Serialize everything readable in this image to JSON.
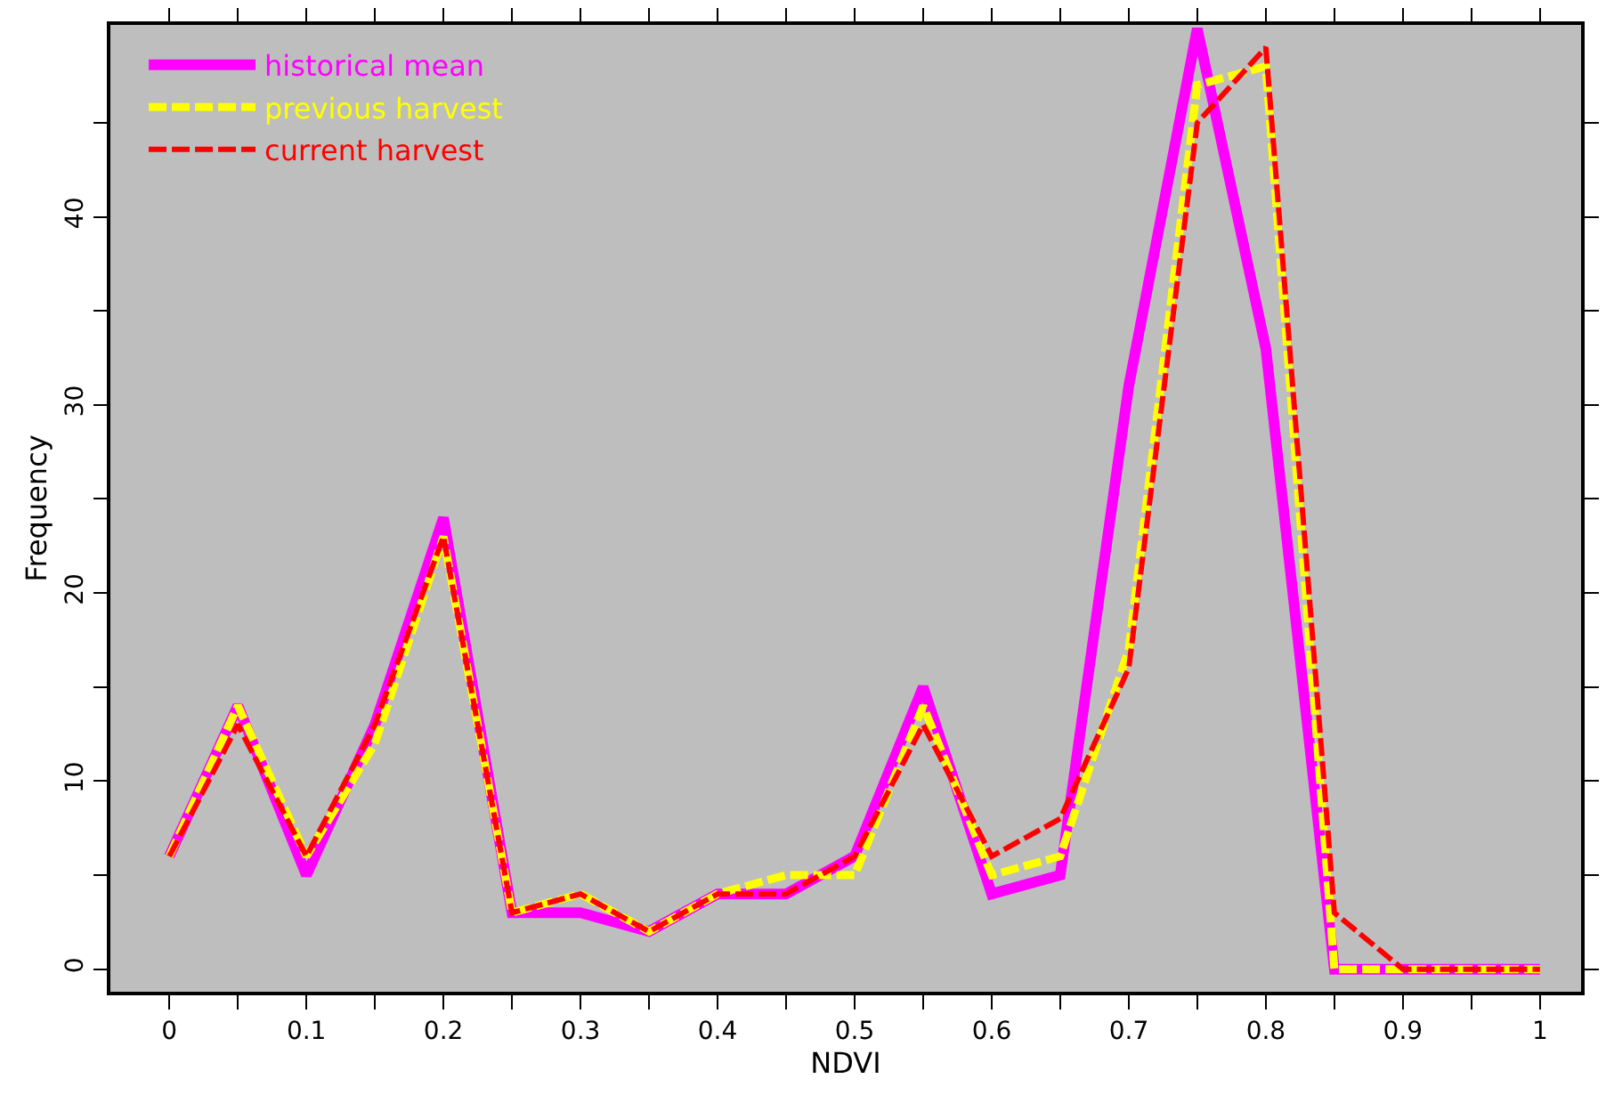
{
  "chart_data": {
    "type": "line",
    "xlabel": "NDVI",
    "ylabel": "Frequency",
    "x": [
      0,
      0.05,
      0.1,
      0.15,
      0.2,
      0.25,
      0.3,
      0.35,
      0.4,
      0.45,
      0.5,
      0.55,
      0.6,
      0.65,
      0.7,
      0.75,
      0.8,
      0.85,
      0.9,
      0.95,
      1
    ],
    "series": [
      {
        "name": "historical mean",
        "color": "#ff00ff",
        "line_style": "solid",
        "values": [
          6,
          14,
          5,
          13,
          24,
          3,
          3,
          2,
          4,
          4,
          6,
          15,
          4,
          5,
          31,
          50,
          33,
          0,
          0,
          0,
          0
        ]
      },
      {
        "name": "previous harvest",
        "color": "#ffff00",
        "line_style": "dashed",
        "values": [
          6,
          14,
          6,
          12,
          23,
          3,
          4,
          2,
          4,
          5,
          5,
          14,
          5,
          6,
          17,
          47,
          48,
          0,
          0,
          0,
          0
        ]
      },
      {
        "name": "current harvest",
        "color": "#ff0000",
        "line_style": "dashed",
        "values": [
          6,
          13,
          6,
          13,
          23,
          3,
          4,
          2,
          4,
          4,
          6,
          13,
          6,
          8,
          16,
          45,
          49,
          3,
          0,
          0,
          0
        ]
      }
    ],
    "xlim": [
      -0.043,
      1.03
    ],
    "ylim": [
      -1.2,
      50.2
    ],
    "xticks": [
      0,
      {
        "value": 0.05,
        "label": null
      },
      0.1,
      {
        "value": 0.15,
        "label": null
      },
      0.2,
      {
        "value": 0.25,
        "label": null
      },
      0.3,
      {
        "value": 0.35,
        "label": null
      },
      0.4,
      {
        "value": 0.45,
        "label": null
      },
      0.5,
      {
        "value": 0.55,
        "label": null
      },
      0.6,
      {
        "value": 0.65,
        "label": null
      },
      0.7,
      {
        "value": 0.75,
        "label": null
      },
      0.8,
      {
        "value": 0.85,
        "label": null
      },
      0.9,
      {
        "value": 0.95,
        "label": null
      },
      1
    ],
    "yticks": [
      0,
      {
        "value": 5,
        "label": null
      },
      10,
      {
        "value": 15,
        "label": null
      },
      20,
      {
        "value": 25,
        "label": null
      },
      30,
      {
        "value": 35,
        "label": null
      },
      40,
      {
        "value": 45,
        "label": null
      }
    ],
    "grid": false,
    "legend": "top left",
    "marker": "none"
  }
}
